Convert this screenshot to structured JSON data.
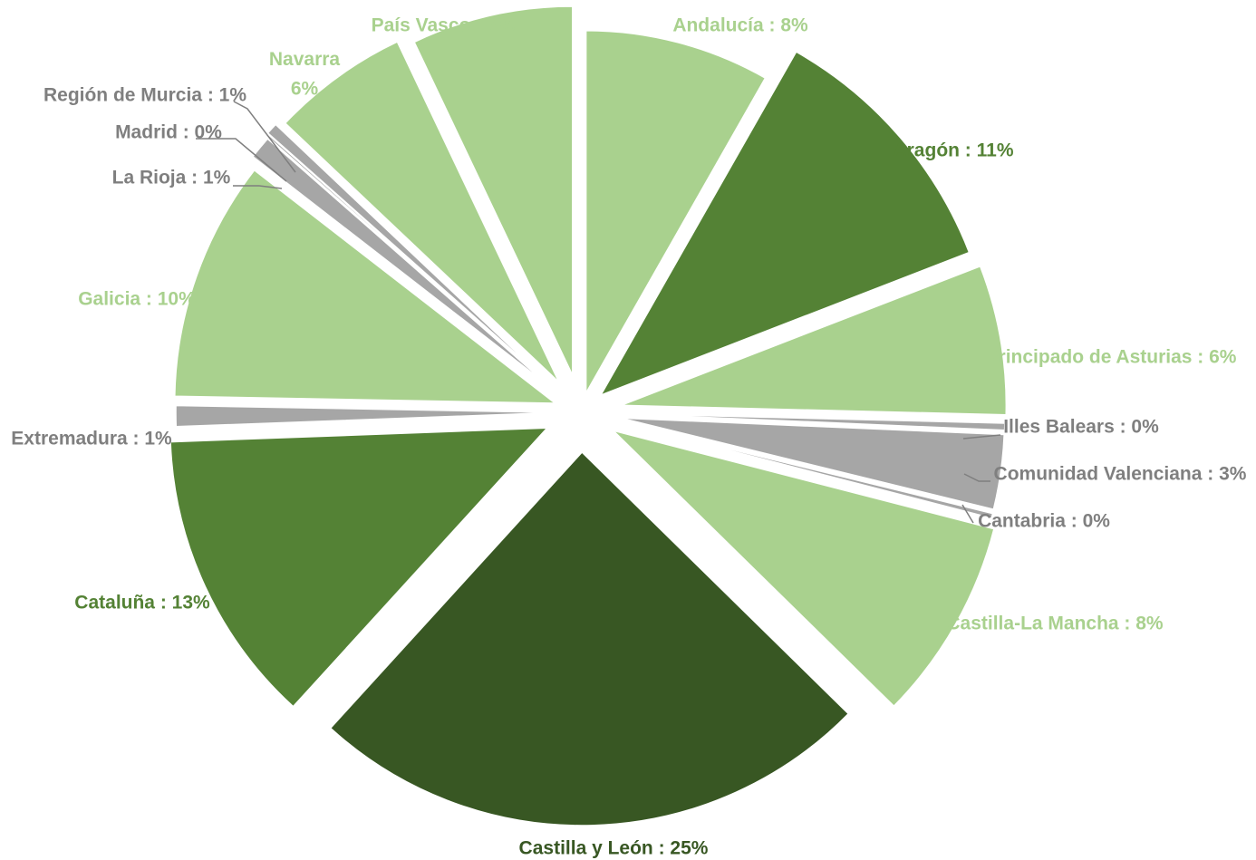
{
  "chart_data": {
    "type": "pie",
    "title": "",
    "start_angle_deg": 0,
    "direction": "clockwise",
    "slices": [
      {
        "label": "Andalucía",
        "value": 8.4,
        "display": "Andalucía : 8%",
        "color": "#a9d18e",
        "label_color": "#a9d18e"
      },
      {
        "label": "Aragón",
        "value": 11.1,
        "display": "Aragón : 11%",
        "color": "#548235",
        "label_color": "#548235"
      },
      {
        "label": "Principado de Asturias",
        "value": 6.4,
        "display": "Principado de Asturias : 6%",
        "color": "#a9d18e",
        "label_color": "#a9d18e"
      },
      {
        "label": "Illes Balears",
        "value": 0.3,
        "display": "Illes Balears : 0%",
        "color": "#a6a6a6",
        "label_color": "#7f7f7f"
      },
      {
        "label": "Comunidad Valenciana",
        "value": 3.2,
        "display": "Comunidad  Valenciana : 3%",
        "color": "#a6a6a6",
        "label_color": "#7f7f7f"
      },
      {
        "label": "Cantabria",
        "value": 0.2,
        "display": "Cantabria : 0%",
        "color": "#a6a6a6",
        "label_color": "#7f7f7f"
      },
      {
        "label": "Castilla-La Mancha",
        "value": 8.5,
        "display": "Castilla-La Mancha : 8%",
        "color": "#a9d18e",
        "label_color": "#a9d18e"
      },
      {
        "label": "Castilla y León",
        "value": 24.9,
        "display": "Castilla y León : 25%",
        "color": "#385723",
        "label_color": "#385723"
      },
      {
        "label": "Cataluña",
        "value": 12.9,
        "display": "Cataluña : 13%",
        "color": "#548235",
        "label_color": "#548235"
      },
      {
        "label": "Extremadura",
        "value": 0.9,
        "display": "Extremadura : 1%",
        "color": "#a6a6a6",
        "label_color": "#7f7f7f"
      },
      {
        "label": "Galicia",
        "value": 10.4,
        "display": "Galicia : 10%",
        "color": "#a9d18e",
        "label_color": "#a9d18e"
      },
      {
        "label": "La Rioja",
        "value": 1.0,
        "display": "La Rioja : 1%",
        "color": "#a6a6a6",
        "label_color": "#7f7f7f"
      },
      {
        "label": "Madrid",
        "value": 0.1,
        "display": "Madrid : 0%",
        "color": "#a6a6a6",
        "label_color": "#7f7f7f"
      },
      {
        "label": "Región de Murcia",
        "value": 0.5,
        "display": "Región de Murcia : 1%",
        "color": "#a6a6a6",
        "label_color": "#7f7f7f"
      },
      {
        "label": "Navarra",
        "value": 6.0,
        "display": "Navarra\n6%",
        "color": "#a9d18e",
        "label_color": "#a9d18e"
      },
      {
        "label": "País Vasco",
        "value": 7.2,
        "display": "País Vasco : 7%",
        "color": "#a9d18e",
        "label_color": "#a9d18e"
      }
    ]
  }
}
